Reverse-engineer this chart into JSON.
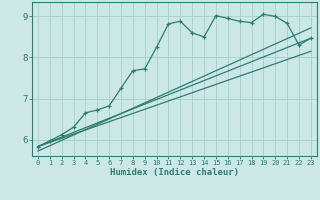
{
  "xlabel": "Humidex (Indice chaleur)",
  "bg_color": "#cce8e4",
  "line_color": "#2e7d6e",
  "grid_color": "#aad4cc",
  "xlim": [
    -0.5,
    23.5
  ],
  "ylim": [
    5.6,
    9.35
  ],
  "xticks": [
    0,
    1,
    2,
    3,
    4,
    5,
    6,
    7,
    8,
    9,
    10,
    11,
    12,
    13,
    14,
    15,
    16,
    17,
    18,
    19,
    20,
    21,
    22,
    23
  ],
  "yticks": [
    6,
    7,
    8,
    9
  ],
  "series1_x": [
    0,
    1,
    2,
    3,
    4,
    5,
    6,
    7,
    8,
    9,
    10,
    11,
    12,
    13,
    14,
    15,
    16,
    17,
    18,
    19,
    20,
    21,
    22,
    23
  ],
  "series1_y": [
    5.83,
    5.97,
    6.12,
    6.3,
    6.65,
    6.72,
    6.82,
    7.25,
    7.68,
    7.72,
    8.25,
    8.82,
    8.88,
    8.6,
    8.5,
    9.02,
    8.95,
    8.88,
    8.85,
    9.05,
    9.0,
    8.83,
    8.3,
    8.47
  ],
  "series2_x": [
    0,
    23
  ],
  "series2_y": [
    5.83,
    8.47
  ],
  "series3_x": [
    0,
    23
  ],
  "series3_y": [
    5.83,
    8.15
  ],
  "series4_x": [
    0,
    23
  ],
  "series4_y": [
    5.72,
    8.72
  ]
}
